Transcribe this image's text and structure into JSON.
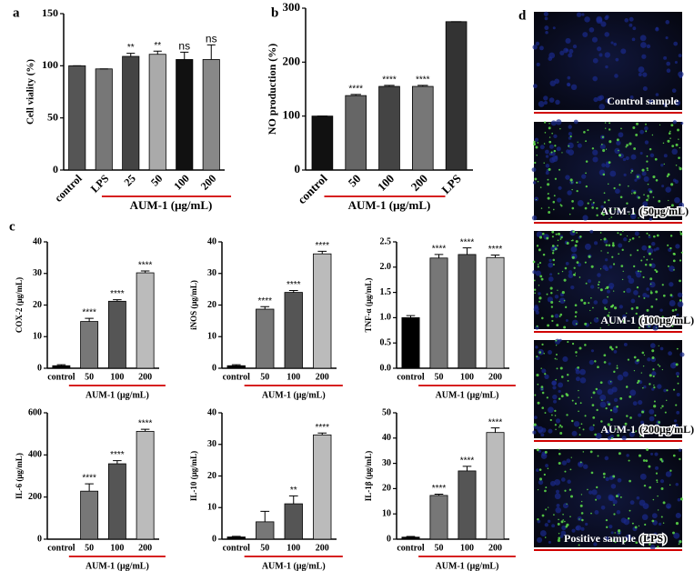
{
  "panel_labels": [
    "a",
    "b",
    "c",
    "d"
  ],
  "chart_data": [
    {
      "type": "bar",
      "ylabel": "Cell viality (%)",
      "categories": [
        "control",
        "LPS",
        "25",
        "50",
        "100",
        "200"
      ],
      "values": [
        100,
        97,
        109,
        111,
        106,
        106
      ],
      "errors": [
        0,
        0,
        3,
        3,
        7,
        14
      ],
      "annotations": [
        null,
        null,
        "**",
        "**",
        "ns",
        "ns"
      ],
      "colors": [
        "#555555",
        "#777777",
        "#444444",
        "#aaaaaa",
        "#111111",
        "#888888"
      ],
      "ylim": [
        0,
        150
      ],
      "yticks": [
        0,
        50,
        100,
        150
      ],
      "group_label": "AUM-1 (μg/mL)"
    },
    {
      "type": "bar",
      "ylabel": "NO production (%)",
      "categories": [
        "control",
        "50",
        "100",
        "200",
        "LPS"
      ],
      "values": [
        100,
        138,
        155,
        155,
        275
      ],
      "errors": [
        0,
        2,
        2,
        2,
        0
      ],
      "annotations": [
        null,
        "****",
        "****",
        "****",
        null
      ],
      "colors": [
        "#111111",
        "#666666",
        "#444444",
        "#777777",
        "#333333"
      ],
      "ylim": [
        0,
        300
      ],
      "yticks": [
        0,
        100,
        200,
        300
      ],
      "group_label": "AUM-1 (μg/mL)"
    },
    {
      "type": "bar",
      "ylabel": "COX-2 (μg/mL)",
      "categories": [
        "control",
        "50",
        "100",
        "200"
      ],
      "values": [
        0.8,
        14.8,
        21.2,
        30.2
      ],
      "errors": [
        0.3,
        1,
        0.5,
        0.6
      ],
      "annotations": [
        null,
        "****",
        "****",
        "****"
      ],
      "colors": [
        "#000000",
        "#777777",
        "#555555",
        "#bbbbbb"
      ],
      "ylim": [
        0,
        40
      ],
      "yticks": [
        0,
        10,
        20,
        30,
        40
      ],
      "group_label": "AUM-1 (μg/mL)"
    },
    {
      "type": "bar",
      "ylabel": "iNOS (μg/mL)",
      "categories": [
        "control",
        "50",
        "100",
        "200"
      ],
      "values": [
        0.8,
        18.7,
        24,
        36.2
      ],
      "errors": [
        0.3,
        0.8,
        0.6,
        0.8
      ],
      "annotations": [
        null,
        "****",
        "****",
        "****"
      ],
      "colors": [
        "#000000",
        "#777777",
        "#555555",
        "#bbbbbb"
      ],
      "ylim": [
        0,
        40
      ],
      "yticks": [
        0,
        10,
        20,
        30,
        40
      ],
      "group_label": "AUM-1 (μg/mL)"
    },
    {
      "type": "bar",
      "ylabel": "TNF-α (μg/mL)",
      "categories": [
        "control",
        "50",
        "100",
        "200"
      ],
      "values": [
        1.0,
        2.18,
        2.25,
        2.19
      ],
      "errors": [
        0.04,
        0.07,
        0.13,
        0.05
      ],
      "annotations": [
        null,
        "****",
        "****",
        "****"
      ],
      "colors": [
        "#000000",
        "#777777",
        "#555555",
        "#bbbbbb"
      ],
      "ylim": [
        0,
        2.5
      ],
      "yticks": [
        {
          "value": 0,
          "label": "0.0"
        },
        0.5,
        {
          "value": 1,
          "label": "1.0"
        },
        1.5,
        {
          "value": 2,
          "label": "2.0"
        },
        2.5
      ],
      "group_label": "AUM-1 (μg/mL)"
    },
    {
      "type": "bar",
      "ylabel": "IL-6 (μg/mL)",
      "categories": [
        "control",
        "50",
        "100",
        "200"
      ],
      "values": [
        0,
        228,
        358,
        512
      ],
      "errors": [
        0,
        35,
        15,
        10
      ],
      "annotations": [
        null,
        "****",
        "****",
        "****"
      ],
      "colors": [
        "#000000",
        "#777777",
        "#555555",
        "#bbbbbb"
      ],
      "ylim": [
        0,
        600
      ],
      "yticks": [
        0,
        200,
        400,
        600
      ],
      "group_label": "AUM-1 (μg/mL)"
    },
    {
      "type": "bar",
      "ylabel": "IL-10 (μg/mL)",
      "categories": [
        "control",
        "50",
        "100",
        "200"
      ],
      "values": [
        0.7,
        5.5,
        11.2,
        33
      ],
      "errors": [
        0.2,
        3.3,
        2.5,
        0.6
      ],
      "annotations": [
        null,
        null,
        "**",
        "****"
      ],
      "colors": [
        "#000000",
        "#777777",
        "#555555",
        "#bbbbbb"
      ],
      "ylim": [
        0,
        40
      ],
      "yticks": [
        0,
        10,
        20,
        30,
        40
      ],
      "group_label": "AUM-1 (μg/mL)"
    },
    {
      "type": "bar",
      "ylabel": "IL-1β (μg/mL)",
      "categories": [
        "control",
        "50",
        "100",
        "200"
      ],
      "values": [
        0.8,
        17.3,
        27,
        42.2
      ],
      "errors": [
        0.3,
        0.5,
        1.8,
        1.8
      ],
      "annotations": [
        null,
        "****",
        "****",
        "****"
      ],
      "colors": [
        "#000000",
        "#777777",
        "#555555",
        "#bbbbbb"
      ],
      "ylim": [
        0,
        50
      ],
      "yticks": [
        0,
        10,
        20,
        30,
        40,
        50
      ],
      "group_label": "AUM-1 (μg/mL)"
    }
  ],
  "microscopy": [
    {
      "label": "Control sample"
    },
    {
      "label": "AUM-1",
      "note": "(50μg/mL)"
    },
    {
      "label": "AUM-1",
      "note": "(100μg/mL)"
    },
    {
      "label": "AUM-1",
      "note": "(200μg/mL)"
    },
    {
      "label": "Positive sample",
      "note": "(LPS)"
    }
  ]
}
